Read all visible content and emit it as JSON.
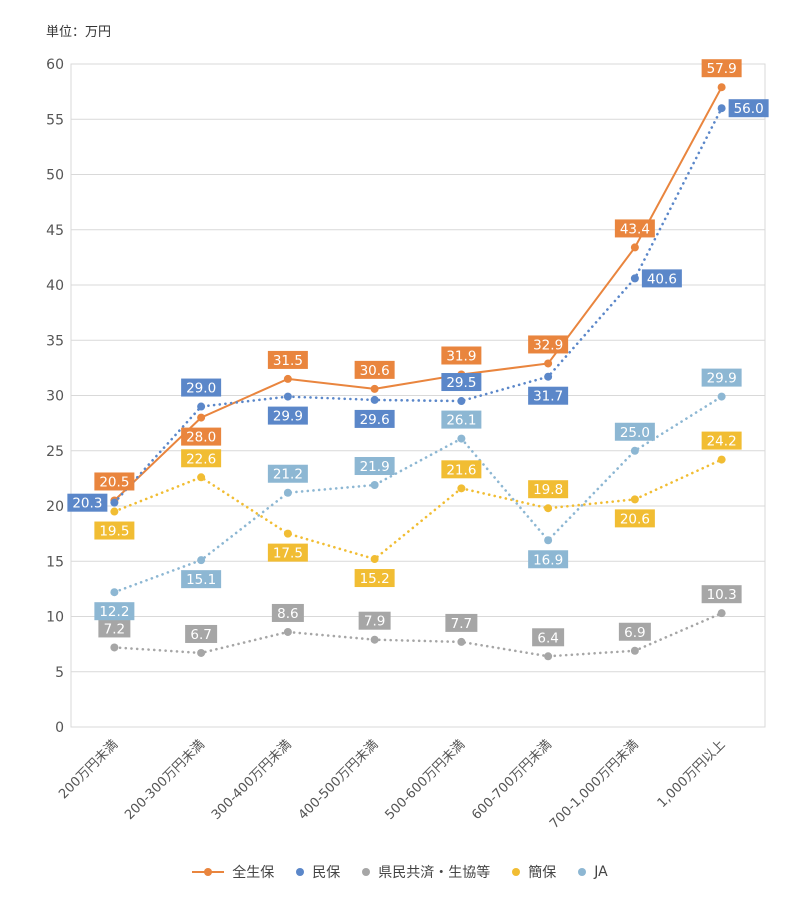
{
  "unit_label": "単位：万円",
  "colors": {
    "zenseiho": "#e9853e",
    "minpo": "#5b87c9",
    "kenmin": "#a6a6a6",
    "kanpo": "#f1bd33",
    "ja": "#8db7d3",
    "grid": "#d9d9d9"
  },
  "chart_data": {
    "type": "line",
    "title": "",
    "xlabel": "",
    "ylabel": "",
    "ylim": [
      0,
      60
    ],
    "yticks": [
      0,
      5,
      10,
      15,
      20,
      25,
      30,
      35,
      40,
      45,
      50,
      55,
      60
    ],
    "grid": true,
    "legend_position": "bottom",
    "categories": [
      "200万円未満",
      "200-300万円未満",
      "300-400万円未満",
      "400-500万円未満",
      "500-600万円未満",
      "600-700万円未満",
      "700-1,000万円未満",
      "1,000万円以上"
    ],
    "series": [
      {
        "name": "全生保",
        "key": "zenseiho",
        "style": "solid",
        "values": [
          20.5,
          28.0,
          31.5,
          30.6,
          31.9,
          32.9,
          43.4,
          57.9
        ],
        "label_pos": [
          "above",
          "below",
          "above",
          "above",
          "above",
          "above",
          "above",
          "above"
        ]
      },
      {
        "name": "民保",
        "key": "minpo",
        "style": "dotted",
        "values": [
          20.3,
          29.0,
          29.9,
          29.6,
          29.5,
          31.7,
          40.6,
          56.0
        ],
        "label_pos": [
          "left",
          "above",
          "below",
          "below",
          "above",
          "below",
          "right",
          "right"
        ]
      },
      {
        "name": "県民共済・生協等",
        "key": "kenmin",
        "style": "dotted",
        "values": [
          7.2,
          6.7,
          8.6,
          7.9,
          7.7,
          6.4,
          6.9,
          10.3
        ],
        "label_pos": [
          "above",
          "above",
          "above",
          "above",
          "above",
          "above",
          "above",
          "above"
        ]
      },
      {
        "name": "簡保",
        "key": "kanpo",
        "style": "dotted",
        "values": [
          19.5,
          22.6,
          17.5,
          15.2,
          21.6,
          19.8,
          20.6,
          24.2
        ],
        "label_pos": [
          "below",
          "above",
          "below",
          "below",
          "above",
          "above",
          "below",
          "above"
        ]
      },
      {
        "name": "JA",
        "key": "ja",
        "style": "dotted",
        "values": [
          12.2,
          15.1,
          21.2,
          21.9,
          26.1,
          16.9,
          25.0,
          29.9
        ],
        "label_pos": [
          "below",
          "below",
          "above",
          "above",
          "above",
          "below",
          "above",
          "above"
        ]
      }
    ]
  }
}
